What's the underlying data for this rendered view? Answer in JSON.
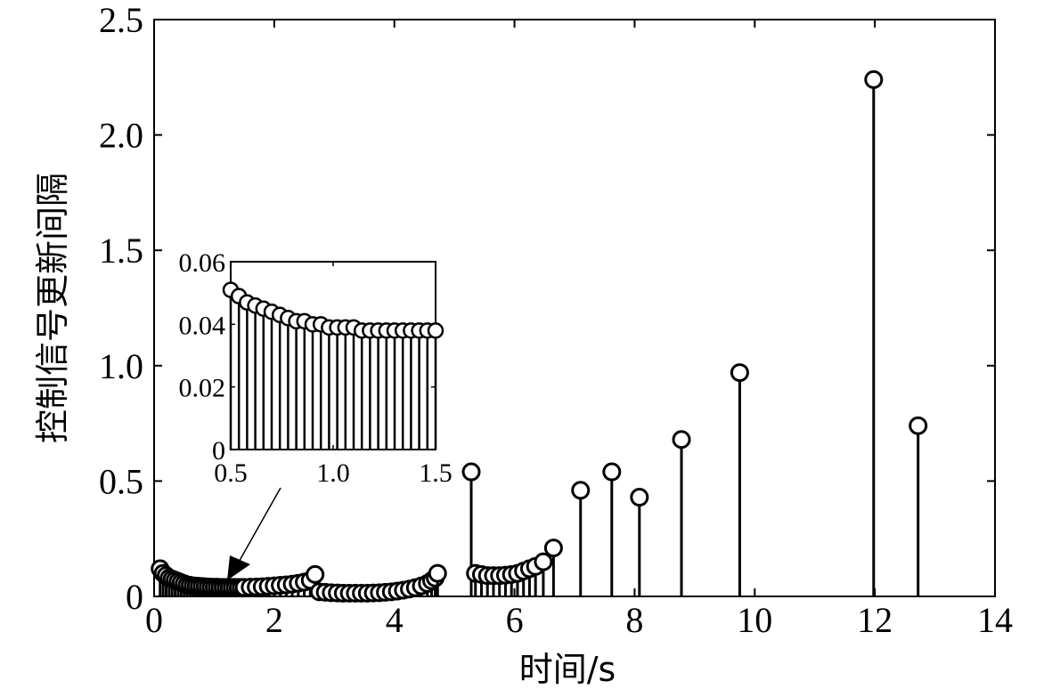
{
  "chart_data": [
    {
      "type": "stem",
      "xlabel": "时间/s",
      "ylabel": "控制信号更新间隔",
      "xlim": [
        0,
        14
      ],
      "ylim": [
        0,
        2.5
      ],
      "x_ticks": [
        "0",
        "2",
        "4",
        "6",
        "8",
        "10",
        "12",
        "14"
      ],
      "y_ticks": [
        "0",
        "0.5",
        "1.0",
        "1.5",
        "2.0",
        "2.5"
      ],
      "grid": false,
      "series": [
        {
          "x": [
            0.1,
            0.15,
            0.2,
            0.25,
            0.3,
            0.35,
            0.4,
            0.45,
            0.5,
            0.55,
            0.6,
            0.65,
            0.7,
            0.75,
            0.8,
            0.85,
            0.9,
            0.95,
            1.0,
            1.05,
            1.1,
            1.15,
            1.2,
            1.25,
            1.3,
            1.35,
            1.4,
            1.45,
            1.5,
            1.6,
            1.7,
            1.8,
            1.9,
            2.0,
            2.1,
            2.2,
            2.3,
            2.4,
            2.5,
            2.6,
            2.68,
            2.75,
            2.85,
            2.95,
            3.05,
            3.15,
            3.25,
            3.35,
            3.45,
            3.55,
            3.65,
            3.75,
            3.85,
            3.95,
            4.05,
            4.15,
            4.25,
            4.35,
            4.45,
            4.55,
            4.62,
            4.68,
            4.72,
            5.28,
            5.35,
            5.45,
            5.55,
            5.65,
            5.75,
            5.85,
            5.95,
            6.05,
            6.15,
            6.25,
            6.35,
            6.48,
            6.65,
            7.1,
            7.62,
            8.08,
            8.78,
            9.75,
            11.98,
            12.72
          ],
          "y": [
            0.12,
            0.1,
            0.09,
            0.08,
            0.075,
            0.07,
            0.065,
            0.06,
            0.055,
            0.05,
            0.048,
            0.046,
            0.045,
            0.044,
            0.043,
            0.042,
            0.041,
            0.04,
            0.04,
            0.04,
            0.039,
            0.039,
            0.039,
            0.039,
            0.039,
            0.039,
            0.039,
            0.039,
            0.039,
            0.04,
            0.041,
            0.042,
            0.044,
            0.046,
            0.048,
            0.05,
            0.053,
            0.057,
            0.062,
            0.07,
            0.095,
            0.02,
            0.018,
            0.016,
            0.015,
            0.014,
            0.014,
            0.014,
            0.014,
            0.014,
            0.015,
            0.016,
            0.018,
            0.02,
            0.023,
            0.027,
            0.032,
            0.038,
            0.046,
            0.056,
            0.068,
            0.08,
            0.1,
            0.54,
            0.1,
            0.095,
            0.09,
            0.09,
            0.09,
            0.092,
            0.095,
            0.1,
            0.11,
            0.12,
            0.13,
            0.15,
            0.21,
            0.46,
            0.54,
            0.43,
            0.68,
            0.97,
            2.24,
            0.74
          ]
        }
      ]
    },
    {
      "type": "stem",
      "inset": true,
      "xlim": [
        0.5,
        1.5
      ],
      "ylim": [
        0,
        0.06
      ],
      "x_ticks": [
        "0.5",
        "1.0",
        "1.5"
      ],
      "y_ticks": [
        "0",
        "0.02",
        "0.04",
        "0.06"
      ],
      "grid": false,
      "series": [
        {
          "x": [
            0.5,
            0.54,
            0.58,
            0.62,
            0.66,
            0.7,
            0.74,
            0.78,
            0.82,
            0.86,
            0.9,
            0.94,
            0.98,
            1.02,
            1.06,
            1.1,
            1.14,
            1.18,
            1.22,
            1.26,
            1.3,
            1.34,
            1.38,
            1.42,
            1.46,
            1.5
          ],
          "y": [
            0.051,
            0.049,
            0.047,
            0.046,
            0.045,
            0.044,
            0.043,
            0.042,
            0.041,
            0.041,
            0.04,
            0.04,
            0.039,
            0.039,
            0.039,
            0.039,
            0.038,
            0.038,
            0.038,
            0.038,
            0.038,
            0.038,
            0.038,
            0.038,
            0.038,
            0.038
          ]
        }
      ]
    }
  ]
}
